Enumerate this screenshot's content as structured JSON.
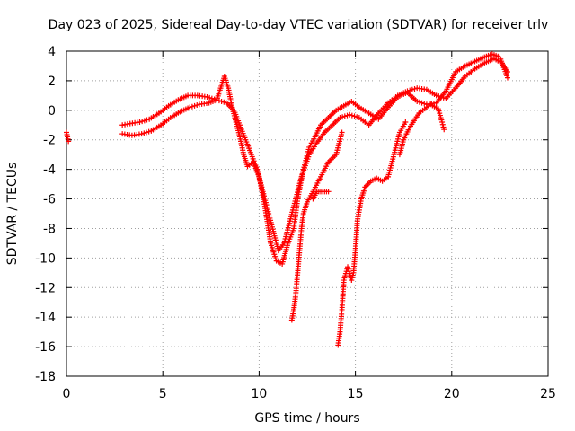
{
  "chart_data": {
    "type": "scatter",
    "title": "Day 023 of 2025, Sidereal Day-to-day VTEC variation (SDTVAR) for receiver trlv",
    "xlabel": "GPS time / hours",
    "ylabel": "SDTVAR / TECUs",
    "xlim": [
      0,
      25
    ],
    "ylim": [
      -18,
      4
    ],
    "xticks": [
      0,
      5,
      10,
      15,
      20,
      25
    ],
    "yticks": [
      -18,
      -16,
      -14,
      -12,
      -10,
      -8,
      -6,
      -4,
      -2,
      0,
      2,
      4
    ],
    "grid": true,
    "marker": "+",
    "color": "#ff0000",
    "series": [
      {
        "points": [
          [
            0.0,
            -1.5
          ],
          [
            0.05,
            -1.8
          ],
          [
            0.1,
            -2.1
          ]
        ]
      },
      {
        "points": [
          [
            2.9,
            -1.0
          ],
          [
            3.3,
            -0.9
          ],
          [
            3.8,
            -0.8
          ],
          [
            4.3,
            -0.6
          ],
          [
            4.8,
            -0.2
          ],
          [
            5.3,
            0.3
          ],
          [
            5.8,
            0.7
          ],
          [
            6.3,
            1.0
          ],
          [
            6.8,
            1.0
          ],
          [
            7.3,
            0.9
          ],
          [
            7.8,
            0.7
          ],
          [
            8.3,
            0.5
          ],
          [
            8.7,
            0.0
          ],
          [
            9.0,
            -1.0
          ],
          [
            9.3,
            -2.0
          ],
          [
            9.6,
            -3.0
          ],
          [
            9.9,
            -4.0
          ],
          [
            10.2,
            -5.5
          ],
          [
            10.5,
            -7.0
          ],
          [
            10.8,
            -8.5
          ],
          [
            11.0,
            -9.5
          ],
          [
            11.3,
            -9.0
          ],
          [
            11.6,
            -7.5
          ],
          [
            11.9,
            -6.0
          ],
          [
            12.2,
            -4.5
          ],
          [
            12.6,
            -3.0
          ],
          [
            13.0,
            -2.2
          ],
          [
            13.4,
            -1.5
          ],
          [
            13.8,
            -1.0
          ],
          [
            14.2,
            -0.5
          ],
          [
            14.7,
            -0.3
          ],
          [
            15.2,
            -0.5
          ],
          [
            15.7,
            -1.0
          ],
          [
            16.2,
            -0.2
          ],
          [
            16.7,
            0.5
          ],
          [
            17.2,
            1.0
          ],
          [
            17.7,
            1.3
          ],
          [
            18.2,
            1.5
          ],
          [
            18.7,
            1.4
          ],
          [
            19.2,
            1.0
          ],
          [
            19.7,
            0.8
          ],
          [
            20.2,
            1.5
          ],
          [
            20.7,
            2.3
          ],
          [
            21.2,
            2.8
          ],
          [
            21.7,
            3.2
          ],
          [
            22.2,
            3.5
          ],
          [
            22.6,
            3.2
          ],
          [
            22.9,
            2.6
          ]
        ]
      },
      {
        "points": [
          [
            2.9,
            -1.6
          ],
          [
            3.4,
            -1.7
          ],
          [
            3.9,
            -1.6
          ],
          [
            4.4,
            -1.4
          ],
          [
            4.9,
            -1.0
          ],
          [
            5.4,
            -0.5
          ],
          [
            5.9,
            -0.1
          ],
          [
            6.4,
            0.2
          ],
          [
            6.9,
            0.4
          ],
          [
            7.4,
            0.5
          ],
          [
            7.8,
            0.7
          ],
          [
            8.0,
            1.5
          ],
          [
            8.2,
            2.3
          ],
          [
            8.4,
            1.5
          ],
          [
            8.6,
            0.2
          ],
          [
            8.8,
            -0.8
          ],
          [
            9.0,
            -1.8
          ],
          [
            9.2,
            -3.0
          ],
          [
            9.4,
            -3.8
          ],
          [
            9.7,
            -3.5
          ],
          [
            10.0,
            -4.5
          ],
          [
            10.3,
            -6.5
          ],
          [
            10.6,
            -9.0
          ],
          [
            10.9,
            -10.2
          ],
          [
            11.2,
            -10.4
          ],
          [
            11.5,
            -9.0
          ],
          [
            11.8,
            -8.0
          ],
          [
            12.0,
            -6.0
          ],
          [
            12.3,
            -4.0
          ],
          [
            12.6,
            -2.5
          ],
          [
            12.9,
            -1.8
          ],
          [
            13.2,
            -1.0
          ],
          [
            13.6,
            -0.5
          ],
          [
            14.0,
            0.0
          ],
          [
            14.4,
            0.3
          ],
          [
            14.8,
            0.6
          ],
          [
            15.2,
            0.2
          ],
          [
            15.7,
            -0.2
          ],
          [
            16.2,
            -0.6
          ],
          [
            16.7,
            0.2
          ],
          [
            17.2,
            0.9
          ],
          [
            17.7,
            1.2
          ],
          [
            18.2,
            0.6
          ],
          [
            18.7,
            0.4
          ],
          [
            19.2,
            0.5
          ],
          [
            19.7,
            1.3
          ],
          [
            20.2,
            2.6
          ],
          [
            20.7,
            3.0
          ],
          [
            21.2,
            3.3
          ],
          [
            21.7,
            3.6
          ],
          [
            22.1,
            3.8
          ],
          [
            22.5,
            3.6
          ],
          [
            22.9,
            2.2
          ]
        ]
      },
      {
        "points": [
          [
            11.7,
            -14.2
          ],
          [
            11.8,
            -13.5
          ],
          [
            11.9,
            -12.5
          ],
          [
            12.0,
            -11.0
          ],
          [
            12.1,
            -9.5
          ],
          [
            12.2,
            -8.0
          ],
          [
            12.3,
            -7.0
          ],
          [
            12.5,
            -6.2
          ],
          [
            12.8,
            -5.5
          ],
          [
            13.2,
            -4.5
          ],
          [
            13.6,
            -3.5
          ],
          [
            14.0,
            -3.0
          ],
          [
            14.3,
            -1.5
          ]
        ]
      },
      {
        "points": [
          [
            14.1,
            -15.9
          ],
          [
            14.2,
            -15.0
          ],
          [
            14.3,
            -13.5
          ],
          [
            14.4,
            -11.5
          ],
          [
            14.6,
            -10.6
          ],
          [
            14.8,
            -11.5
          ],
          [
            14.9,
            -11.0
          ],
          [
            15.0,
            -9.5
          ],
          [
            15.1,
            -7.5
          ],
          [
            15.3,
            -6.0
          ],
          [
            15.5,
            -5.2
          ],
          [
            15.8,
            -4.8
          ],
          [
            16.1,
            -4.6
          ],
          [
            16.4,
            -4.8
          ],
          [
            16.7,
            -4.5
          ],
          [
            17.0,
            -3.0
          ],
          [
            17.3,
            -1.5
          ],
          [
            17.6,
            -0.8
          ]
        ]
      },
      {
        "points": [
          [
            12.8,
            -6.0
          ],
          [
            13.0,
            -5.5
          ],
          [
            13.3,
            -5.5
          ],
          [
            13.6,
            -5.5
          ]
        ]
      },
      {
        "points": [
          [
            17.3,
            -3.0
          ],
          [
            17.5,
            -2.0
          ],
          [
            17.8,
            -1.2
          ],
          [
            18.3,
            -0.2
          ],
          [
            18.9,
            0.4
          ],
          [
            19.3,
            0.1
          ],
          [
            19.5,
            -0.8
          ],
          [
            19.6,
            -1.3
          ]
        ]
      }
    ]
  }
}
